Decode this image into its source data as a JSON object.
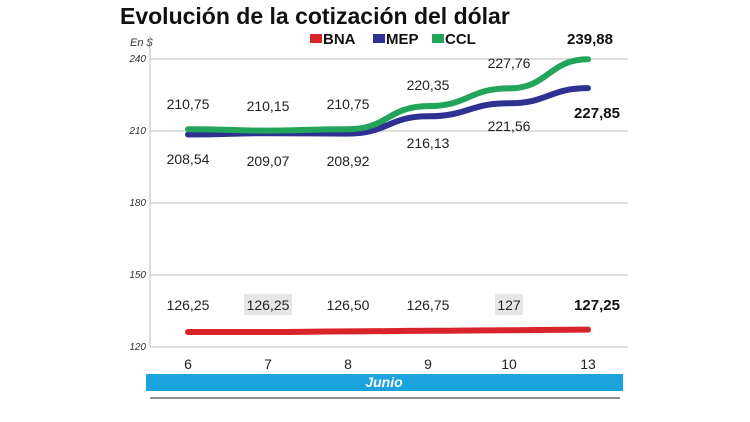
{
  "chart_data": {
    "type": "line",
    "title": "Evolución de la cotización del dólar",
    "unit_label": "En $",
    "x": [
      "6",
      "7",
      "8",
      "9",
      "10",
      "13"
    ],
    "xlabel": "Junio",
    "ylim": [
      120,
      245
    ],
    "yticks": [
      120,
      150,
      180,
      210,
      240
    ],
    "ytick_labels": [
      "120",
      "150",
      "180",
      "210",
      "240"
    ],
    "grid": true,
    "legend": "top-center",
    "series": [
      {
        "name": "BNA",
        "color": "#d8232a",
        "values": [
          126.25,
          126.25,
          126.5,
          126.75,
          127,
          127.25
        ],
        "labels": [
          "126,25",
          "126,25",
          "126,50",
          "126,75",
          "127",
          "127,25"
        ]
      },
      {
        "name": "MEP",
        "color": "#2e3192",
        "values": [
          208.54,
          209.07,
          208.92,
          216.13,
          221.56,
          227.85
        ],
        "labels": [
          "208,54",
          "209,07",
          "208,92",
          "216,13",
          "221,56",
          "227,85"
        ]
      },
      {
        "name": "CCL",
        "color": "#22a45a",
        "values": [
          210.75,
          210.15,
          210.75,
          220.35,
          227.76,
          239.88
        ],
        "labels": [
          "210,75",
          "210,15",
          "210,75",
          "220,35",
          "227,76",
          "239,88"
        ]
      }
    ]
  }
}
